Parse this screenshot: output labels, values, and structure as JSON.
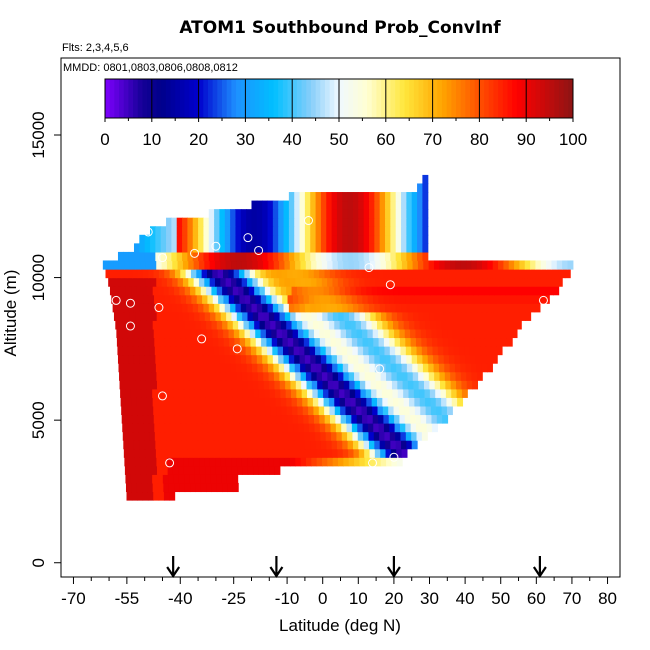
{
  "chart_data": {
    "type": "heatmap",
    "title": "ATOM1 Southbound Prob_ConvInf",
    "notes": [
      "Flts: 2,3,4,5,6",
      "MMDD: 0801,0803,0806,0808,0812"
    ],
    "xlabel": "Latitude (deg N)",
    "ylabel": "Altitude (m)",
    "xlim": [
      -70,
      80
    ],
    "ylim": [
      0,
      17500
    ],
    "x_ticks": [
      -70,
      -55,
      -40,
      -25,
      -10,
      0,
      10,
      20,
      30,
      40,
      50,
      60,
      70,
      80
    ],
    "x_tick_labels": [
      "-70",
      "-55",
      "-40",
      "-25",
      "-10",
      "0",
      "10",
      "20",
      "30",
      "40",
      "50",
      "60",
      "70",
      "80"
    ],
    "x_minor_step": 5,
    "y_ticks": [
      0,
      5000,
      10000,
      15000
    ],
    "y_tick_labels": [
      "0",
      "5000",
      "10000",
      "15000"
    ],
    "colorbar": {
      "min": 0,
      "max": 100,
      "step": 10,
      "tick_labels": [
        "0",
        "10",
        "20",
        "30",
        "40",
        "50",
        "60",
        "70",
        "80",
        "90",
        "100"
      ],
      "colors": [
        "#7f00ff",
        "#00008b",
        "#0000cd",
        "#1e90ff",
        "#00bfff",
        "#87cefa",
        "#ffffff",
        "#ffffe0",
        "#ffd700",
        "#ff8c00",
        "#ff0000",
        "#b22222",
        "#8b1a1a"
      ]
    },
    "arrows_latitude": [
      -42,
      -13,
      20,
      61
    ],
    "circles": [
      {
        "lat": -49,
        "alt": 11600
      },
      {
        "lat": -30,
        "alt": 11100
      },
      {
        "lat": -21,
        "alt": 11400
      },
      {
        "lat": -4,
        "alt": 12000
      },
      {
        "lat": 34,
        "alt": 12050
      },
      {
        "lat": 40,
        "alt": 11050
      },
      {
        "lat": 52,
        "alt": 10950
      },
      {
        "lat": -45,
        "alt": 10700
      },
      {
        "lat": -36,
        "alt": 10850
      },
      {
        "lat": -18,
        "alt": 10950
      },
      {
        "lat": 13,
        "alt": 10350
      },
      {
        "lat": -65,
        "alt": 10200
      },
      {
        "lat": -64,
        "alt": 10200
      },
      {
        "lat": 19,
        "alt": 9750
      },
      {
        "lat": -58,
        "alt": 9200
      },
      {
        "lat": -54,
        "alt": 9100
      },
      {
        "lat": -46,
        "alt": 8950
      },
      {
        "lat": 62,
        "alt": 9200
      },
      {
        "lat": -54,
        "alt": 8300
      },
      {
        "lat": -34,
        "alt": 7850
      },
      {
        "lat": -24,
        "alt": 7500
      },
      {
        "lat": 16,
        "alt": 6800
      },
      {
        "lat": -45,
        "alt": 5850
      },
      {
        "lat": 20,
        "alt": 3700
      },
      {
        "lat": 14,
        "alt": 3500
      },
      {
        "lat": -43,
        "alt": 3500
      }
    ],
    "outline": {
      "left": [
        [
          -60,
          10300
        ],
        [
          -59,
          9300
        ],
        [
          -58,
          8000
        ],
        [
          -57,
          6000
        ],
        [
          -56,
          4500
        ],
        [
          -56,
          3000
        ],
        [
          -55,
          2500
        ],
        [
          -55,
          2000
        ]
      ],
      "right": [
        [
          30,
          13300
        ],
        [
          40,
          12500
        ],
        [
          55,
          11600
        ],
        [
          65,
          10800
        ],
        [
          70,
          10200
        ],
        [
          64,
          9200
        ],
        [
          60,
          8500
        ],
        [
          52,
          7800
        ],
        [
          45,
          6500
        ],
        [
          37,
          5500
        ],
        [
          30,
          4500
        ],
        [
          24,
          3500
        ],
        [
          -25,
          2500
        ],
        [
          -55,
          2000
        ]
      ],
      "top": [
        [
          -60,
          10400
        ],
        [
          -55,
          10800
        ],
        [
          -50,
          11400
        ],
        [
          -45,
          11800
        ],
        [
          -25,
          12300
        ],
        [
          -10,
          12700
        ],
        [
          10,
          12900
        ],
        [
          25,
          12900
        ],
        [
          28,
          13400
        ]
      ]
    },
    "bands": [
      {
        "name": "deep red lower-left core",
        "value": 92
      },
      {
        "name": "blue diagonal band",
        "value": 12
      },
      {
        "name": "upper red band",
        "value": 88
      },
      {
        "name": "light blue interior",
        "value": 38
      }
    ]
  }
}
